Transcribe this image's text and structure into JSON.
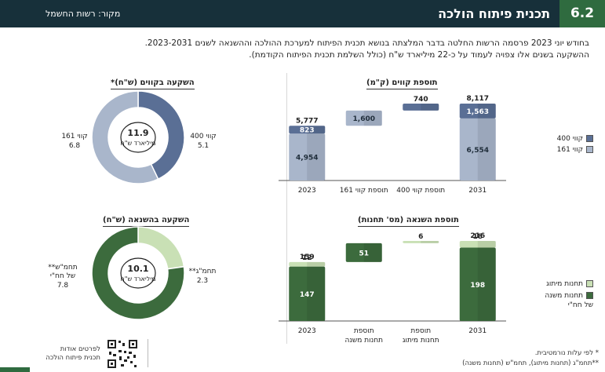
{
  "header": {
    "section_number": "6.2",
    "title": "תכנית פיתוח הולכה",
    "source": "מקור: רשות החשמל"
  },
  "intro": {
    "line1": "בחודש יוני 2023 פרסמה הרשות החלטה בדבר המלצתה בנושא תכנית הפיתוח למערכת ההולכה וההשנאה לשנים 2023-2031.",
    "line2": "ההשקעה בשנים אלו צפויה לעמוד על כ-22 מיליארד ש\"ח (כולל השלמת תכנית הפיתוח הקודמת)."
  },
  "colors": {
    "header_bg": "#17303a",
    "accent_green": "#2f6b3f",
    "kv400": "#5a6f95",
    "kv161": "#a9b6cb",
    "main_substations": "#3c6b3d",
    "switching_substations": "#c9e0b5"
  },
  "footnotes": {
    "note1": "* לפי עלות נורמטיבית.",
    "note2": "**תחמ\"ג (תחנות מיתוג), תחמ\"ש (תחנות משנה)"
  },
  "qr": {
    "line1": "לפרטים אודות",
    "line2": "תכנית פיתוח הולכה"
  },
  "chart_data": [
    {
      "id": "lines_waterfall",
      "type": "bar",
      "title": "תוספת קווים (ק\"מ)",
      "categories": [
        "2023",
        "תוספת קווי 161",
        "תוספת קווי 400",
        "2031"
      ],
      "series": [
        {
          "name": "קווי 161",
          "color": "#a9b6cb",
          "bars": [
            {
              "from": 0,
              "to": 4954,
              "label": "4,954"
            },
            null,
            null,
            {
              "from": 0,
              "to": 6554,
              "label": "6,554"
            }
          ]
        },
        {
          "name": "קווי 400",
          "color": "#5a6f95",
          "bars": [
            {
              "from": 4954,
              "to": 5777,
              "label": "823"
            },
            null,
            null,
            {
              "from": 6554,
              "to": 8117,
              "label": "1,563"
            }
          ]
        },
        {
          "name": "תוספת",
          "color_by_category": [
            "",
            "#a9b6cb",
            "#5a6f95",
            ""
          ],
          "bars": [
            null,
            {
              "from": 5777,
              "to": 7377,
              "label": "1,600"
            },
            {
              "from": 7377,
              "to": 8117,
              "label": "740"
            },
            null
          ]
        }
      ],
      "totals": [
        {
          "category": "2023",
          "value": 5777,
          "label": "5,777"
        },
        {
          "category": "2031",
          "value": 8117,
          "label": "8,117"
        }
      ],
      "legend": [
        {
          "name": "קווי 400",
          "color": "#5a6f95"
        },
        {
          "name": "קווי 161",
          "color": "#a9b6cb"
        }
      ],
      "ylim": [
        0,
        8117
      ]
    },
    {
      "id": "stations_waterfall",
      "type": "bar",
      "title": "תוספת השנאה (מס' תחנות)",
      "categories": [
        "2023",
        "תוספת תחנות משנה",
        "תוספת תחנות מיתוג",
        "2031"
      ],
      "series": [
        {
          "name": "תחנות משנה של חח\"י",
          "color": "#3c6b3d",
          "bars": [
            {
              "from": 0,
              "to": 147,
              "label": "147"
            },
            null,
            null,
            {
              "from": 0,
              "to": 198,
              "label": "198"
            }
          ]
        },
        {
          "name": "תחנות מיתוג",
          "color": "#c9e0b5",
          "bars": [
            {
              "from": 147,
              "to": 159,
              "label": "12"
            },
            null,
            null,
            {
              "from": 198,
              "to": 216,
              "label": "18"
            }
          ]
        },
        {
          "name": "תוספת",
          "color_by_category": [
            "",
            "#3c6b3d",
            "#c9e0b5",
            ""
          ],
          "bars": [
            null,
            {
              "from": 159,
              "to": 210,
              "label": "51"
            },
            {
              "from": 210,
              "to": 216,
              "label": "6"
            },
            null
          ]
        }
      ],
      "totals": [
        {
          "category": "2023",
          "value": 159,
          "label": "159"
        },
        {
          "category": "2031",
          "value": 216,
          "label": "216"
        }
      ],
      "legend": [
        {
          "name": "תחנות מיתוג",
          "color": "#c9e0b5"
        },
        {
          "name": "תחנות משנה של חח\"י",
          "color": "#3c6b3d"
        }
      ],
      "ylim": [
        0,
        216
      ]
    },
    {
      "id": "lines_investment",
      "type": "pie",
      "title": "השקעה בקווים (ש\"ח)*",
      "center_value": "11.9",
      "center_unit": "מיליארד ש\"ח",
      "slices": [
        {
          "name": "קווי 400",
          "value": 5.1,
          "label": "5.1",
          "color": "#5a6f95"
        },
        {
          "name": "קווי 161",
          "value": 6.8,
          "label": "6.8",
          "color": "#a9b6cb"
        }
      ]
    },
    {
      "id": "stations_investment",
      "type": "pie",
      "title": "השקעה בהשנאה (ש\"ח)",
      "center_value": "10.1",
      "center_unit": "מיליארד ש\"ח",
      "slices": [
        {
          "name": "תחמ\"ג**",
          "value": 2.3,
          "label": "2.3",
          "color": "#c9e0b5"
        },
        {
          "name": "תחמ\"ש** של חח\"י",
          "value": 7.8,
          "label": "7.8",
          "color": "#3c6b3d"
        }
      ]
    }
  ]
}
